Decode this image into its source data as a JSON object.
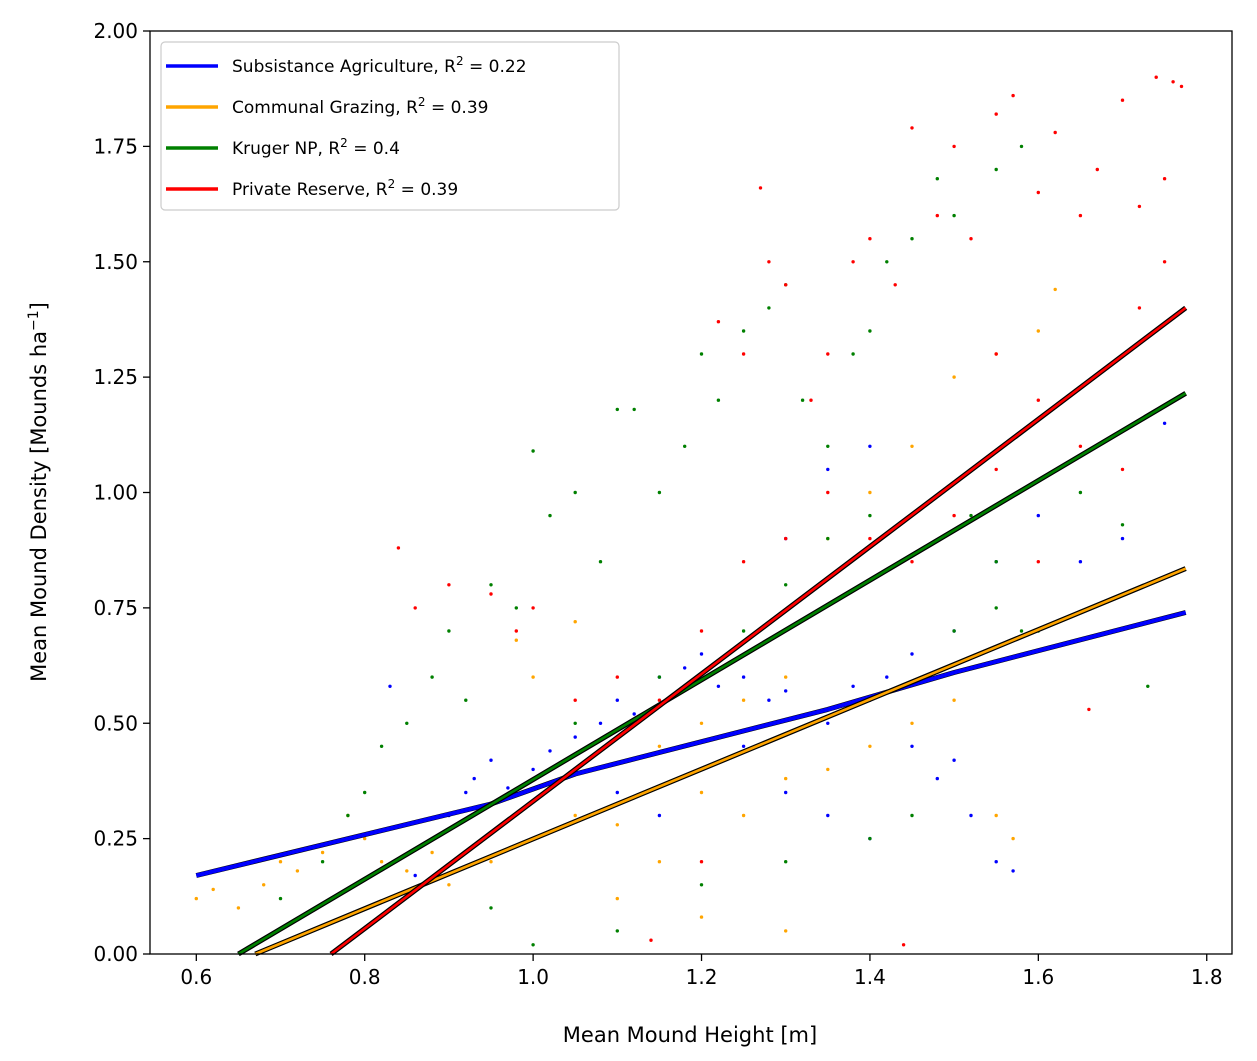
{
  "chart_data": {
    "type": "scatter",
    "title": "",
    "xlabel": "Mean Mound Height [m]",
    "ylabel_main": "Mean Mound Density [Mounds ha",
    "ylabel_sup": "−1",
    "ylabel_end": "]",
    "xlim": [
      0.545,
      1.83
    ],
    "ylim": [
      0,
      2.0
    ],
    "x_ticks": [
      0.6,
      0.8,
      1.0,
      1.2,
      1.4,
      1.6,
      1.8
    ],
    "x_tick_labels": [
      "0.6",
      "0.8",
      "1.0",
      "1.2",
      "1.4",
      "1.6",
      "1.8"
    ],
    "y_ticks": [
      0,
      0.25,
      0.5,
      0.75,
      1.0,
      1.25,
      1.5,
      1.75,
      2.0
    ],
    "y_tick_labels": [
      "0.00",
      "0.25",
      "0.50",
      "0.75",
      "1.00",
      "1.25",
      "1.50",
      "1.75",
      "2.00"
    ],
    "grid": false,
    "legend_position": "top-left",
    "series": [
      {
        "name": "Subsistance Agriculture, R",
        "r2_sup": "2",
        "r2_value": " = 0.22",
        "color": "#0000ff",
        "fit": [
          [
            0.6,
            0.17
          ],
          [
            0.95,
            0.325
          ],
          [
            1.05,
            0.39
          ],
          [
            1.2,
            0.46
          ],
          [
            1.35,
            0.53
          ],
          [
            1.5,
            0.61
          ],
          [
            1.775,
            0.74
          ]
        ],
        "points": [
          [
            0.83,
            0.58
          ],
          [
            0.86,
            0.17
          ],
          [
            0.9,
            0.3
          ],
          [
            0.92,
            0.35
          ],
          [
            0.93,
            0.38
          ],
          [
            0.95,
            0.42
          ],
          [
            0.97,
            0.36
          ],
          [
            1.0,
            0.4
          ],
          [
            1.02,
            0.44
          ],
          [
            1.05,
            0.47
          ],
          [
            1.08,
            0.5
          ],
          [
            1.1,
            0.55
          ],
          [
            1.12,
            0.52
          ],
          [
            1.15,
            0.6
          ],
          [
            1.18,
            0.62
          ],
          [
            1.2,
            0.65
          ],
          [
            1.22,
            0.58
          ],
          [
            1.25,
            0.6
          ],
          [
            1.28,
            0.55
          ],
          [
            1.3,
            0.57
          ],
          [
            1.33,
            0.52
          ],
          [
            1.35,
            0.5
          ],
          [
            1.38,
            0.58
          ],
          [
            1.4,
            0.55
          ],
          [
            1.42,
            0.6
          ],
          [
            1.45,
            0.45
          ],
          [
            1.48,
            0.38
          ],
          [
            1.5,
            0.42
          ],
          [
            1.52,
            0.3
          ],
          [
            1.55,
            0.2
          ],
          [
            1.57,
            0.18
          ],
          [
            1.1,
            0.35
          ],
          [
            1.15,
            0.3
          ],
          [
            1.2,
            0.4
          ],
          [
            1.25,
            0.45
          ],
          [
            1.3,
            0.35
          ],
          [
            1.35,
            0.3
          ],
          [
            1.4,
            0.25
          ],
          [
            1.45,
            0.65
          ],
          [
            1.5,
            0.7
          ],
          [
            1.55,
            0.85
          ],
          [
            1.6,
            0.95
          ],
          [
            1.65,
            0.85
          ],
          [
            1.7,
            0.9
          ],
          [
            1.75,
            1.15
          ],
          [
            1.3,
            0.9
          ],
          [
            1.35,
            1.05
          ],
          [
            1.4,
            1.1
          ]
        ]
      },
      {
        "name": "Communal Grazing, R",
        "r2_sup": "2",
        "r2_value": " = 0.39",
        "color": "#ffa500",
        "fit": [
          [
            0.67,
            0.0
          ],
          [
            1.775,
            0.835
          ]
        ],
        "points": [
          [
            0.6,
            0.12
          ],
          [
            0.62,
            0.14
          ],
          [
            0.65,
            0.1
          ],
          [
            0.68,
            0.15
          ],
          [
            0.7,
            0.2
          ],
          [
            0.72,
            0.18
          ],
          [
            0.75,
            0.22
          ],
          [
            0.78,
            0.3
          ],
          [
            0.8,
            0.25
          ],
          [
            0.82,
            0.2
          ],
          [
            0.85,
            0.18
          ],
          [
            0.88,
            0.22
          ],
          [
            0.9,
            0.15
          ],
          [
            0.95,
            0.2
          ],
          [
            1.0,
            0.25
          ],
          [
            1.05,
            0.3
          ],
          [
            1.1,
            0.28
          ],
          [
            1.15,
            0.2
          ],
          [
            1.2,
            0.35
          ],
          [
            1.25,
            0.3
          ],
          [
            1.3,
            0.38
          ],
          [
            1.35,
            0.4
          ],
          [
            1.4,
            0.45
          ],
          [
            1.45,
            0.5
          ],
          [
            1.5,
            0.55
          ],
          [
            1.55,
            0.3
          ],
          [
            1.57,
            0.25
          ],
          [
            1.15,
            0.45
          ],
          [
            1.2,
            0.5
          ],
          [
            1.25,
            0.55
          ],
          [
            1.3,
            0.6
          ],
          [
            1.35,
            0.9
          ],
          [
            1.4,
            1.0
          ],
          [
            1.45,
            1.1
          ],
          [
            1.5,
            1.25
          ],
          [
            1.55,
            1.3
          ],
          [
            1.6,
            1.35
          ],
          [
            1.62,
            1.44
          ],
          [
            1.3,
            0.05
          ],
          [
            1.0,
            0.6
          ],
          [
            1.05,
            0.72
          ],
          [
            0.98,
            0.68
          ],
          [
            1.2,
            0.08
          ],
          [
            1.1,
            0.12
          ]
        ]
      },
      {
        "name": "Kruger NP, R",
        "r2_sup": "2",
        "r2_value": " = 0.4",
        "color": "#008000",
        "fit": [
          [
            0.65,
            0.0
          ],
          [
            1.775,
            1.215
          ]
        ],
        "points": [
          [
            0.7,
            0.12
          ],
          [
            0.75,
            0.2
          ],
          [
            0.78,
            0.3
          ],
          [
            0.8,
            0.35
          ],
          [
            0.82,
            0.45
          ],
          [
            0.85,
            0.5
          ],
          [
            0.88,
            0.6
          ],
          [
            0.9,
            0.7
          ],
          [
            0.92,
            0.55
          ],
          [
            0.95,
            0.8
          ],
          [
            0.98,
            0.75
          ],
          [
            1.0,
            1.09
          ],
          [
            1.02,
            0.95
          ],
          [
            1.05,
            1.0
          ],
          [
            1.08,
            0.85
          ],
          [
            1.1,
            1.18
          ],
          [
            1.12,
            1.18
          ],
          [
            1.15,
            1.0
          ],
          [
            1.18,
            1.1
          ],
          [
            1.2,
            1.3
          ],
          [
            1.22,
            1.2
          ],
          [
            1.25,
            1.35
          ],
          [
            1.28,
            1.4
          ],
          [
            1.3,
            1.45
          ],
          [
            1.32,
            1.2
          ],
          [
            1.35,
            1.1
          ],
          [
            1.38,
            1.3
          ],
          [
            1.4,
            1.35
          ],
          [
            1.42,
            1.5
          ],
          [
            1.45,
            1.55
          ],
          [
            1.48,
            1.68
          ],
          [
            1.5,
            1.6
          ],
          [
            1.55,
            1.7
          ],
          [
            1.58,
            1.75
          ],
          [
            1.52,
            0.95
          ],
          [
            1.55,
            0.85
          ],
          [
            1.6,
            0.7
          ],
          [
            1.65,
            1.0
          ],
          [
            1.7,
            0.93
          ],
          [
            1.73,
            0.58
          ],
          [
            1.45,
            0.3
          ],
          [
            1.4,
            0.25
          ],
          [
            1.3,
            0.2
          ],
          [
            1.2,
            0.15
          ],
          [
            1.1,
            0.05
          ],
          [
            1.0,
            0.02
          ],
          [
            0.95,
            0.1
          ],
          [
            1.25,
            0.7
          ],
          [
            1.3,
            0.8
          ],
          [
            1.35,
            0.9
          ],
          [
            1.4,
            0.95
          ],
          [
            1.15,
            0.6
          ],
          [
            1.05,
            0.5
          ],
          [
            1.5,
            0.7
          ],
          [
            1.55,
            0.75
          ],
          [
            1.58,
            0.7
          ]
        ]
      },
      {
        "name": "Private Reserve, R",
        "r2_sup": "2",
        "r2_value": " = 0.39",
        "color": "#ff0000",
        "fit": [
          [
            0.76,
            0.0
          ],
          [
            1.775,
            1.4
          ]
        ],
        "points": [
          [
            0.84,
            0.88
          ],
          [
            0.86,
            0.75
          ],
          [
            0.9,
            0.8
          ],
          [
            0.95,
            0.78
          ],
          [
            0.98,
            0.7
          ],
          [
            1.0,
            0.75
          ],
          [
            1.05,
            0.55
          ],
          [
            1.1,
            0.6
          ],
          [
            1.15,
            0.55
          ],
          [
            1.2,
            0.7
          ],
          [
            1.22,
            1.37
          ],
          [
            1.25,
            1.3
          ],
          [
            1.27,
            1.66
          ],
          [
            1.28,
            1.5
          ],
          [
            1.3,
            1.45
          ],
          [
            1.33,
            1.2
          ],
          [
            1.35,
            1.3
          ],
          [
            1.38,
            1.5
          ],
          [
            1.4,
            1.55
          ],
          [
            1.43,
            1.45
          ],
          [
            1.45,
            1.79
          ],
          [
            1.48,
            1.6
          ],
          [
            1.5,
            1.75
          ],
          [
            1.52,
            1.55
          ],
          [
            1.55,
            1.82
          ],
          [
            1.57,
            1.86
          ],
          [
            1.6,
            1.65
          ],
          [
            1.62,
            1.78
          ],
          [
            1.65,
            1.6
          ],
          [
            1.67,
            1.7
          ],
          [
            1.7,
            1.85
          ],
          [
            1.72,
            1.62
          ],
          [
            1.74,
            1.9
          ],
          [
            1.75,
            1.68
          ],
          [
            1.76,
            1.89
          ],
          [
            1.77,
            1.88
          ],
          [
            1.55,
            1.3
          ],
          [
            1.6,
            1.2
          ],
          [
            1.65,
            1.1
          ],
          [
            1.7,
            1.05
          ],
          [
            1.72,
            1.4
          ],
          [
            1.75,
            1.5
          ],
          [
            1.35,
            1.0
          ],
          [
            1.3,
            0.9
          ],
          [
            1.25,
            0.85
          ],
          [
            1.4,
            0.9
          ],
          [
            1.45,
            0.85
          ],
          [
            1.5,
            0.95
          ],
          [
            1.55,
            1.05
          ],
          [
            1.6,
            0.85
          ],
          [
            1.66,
            0.53
          ],
          [
            1.44,
            0.02
          ],
          [
            1.14,
            0.03
          ],
          [
            1.2,
            0.2
          ]
        ]
      }
    ]
  }
}
